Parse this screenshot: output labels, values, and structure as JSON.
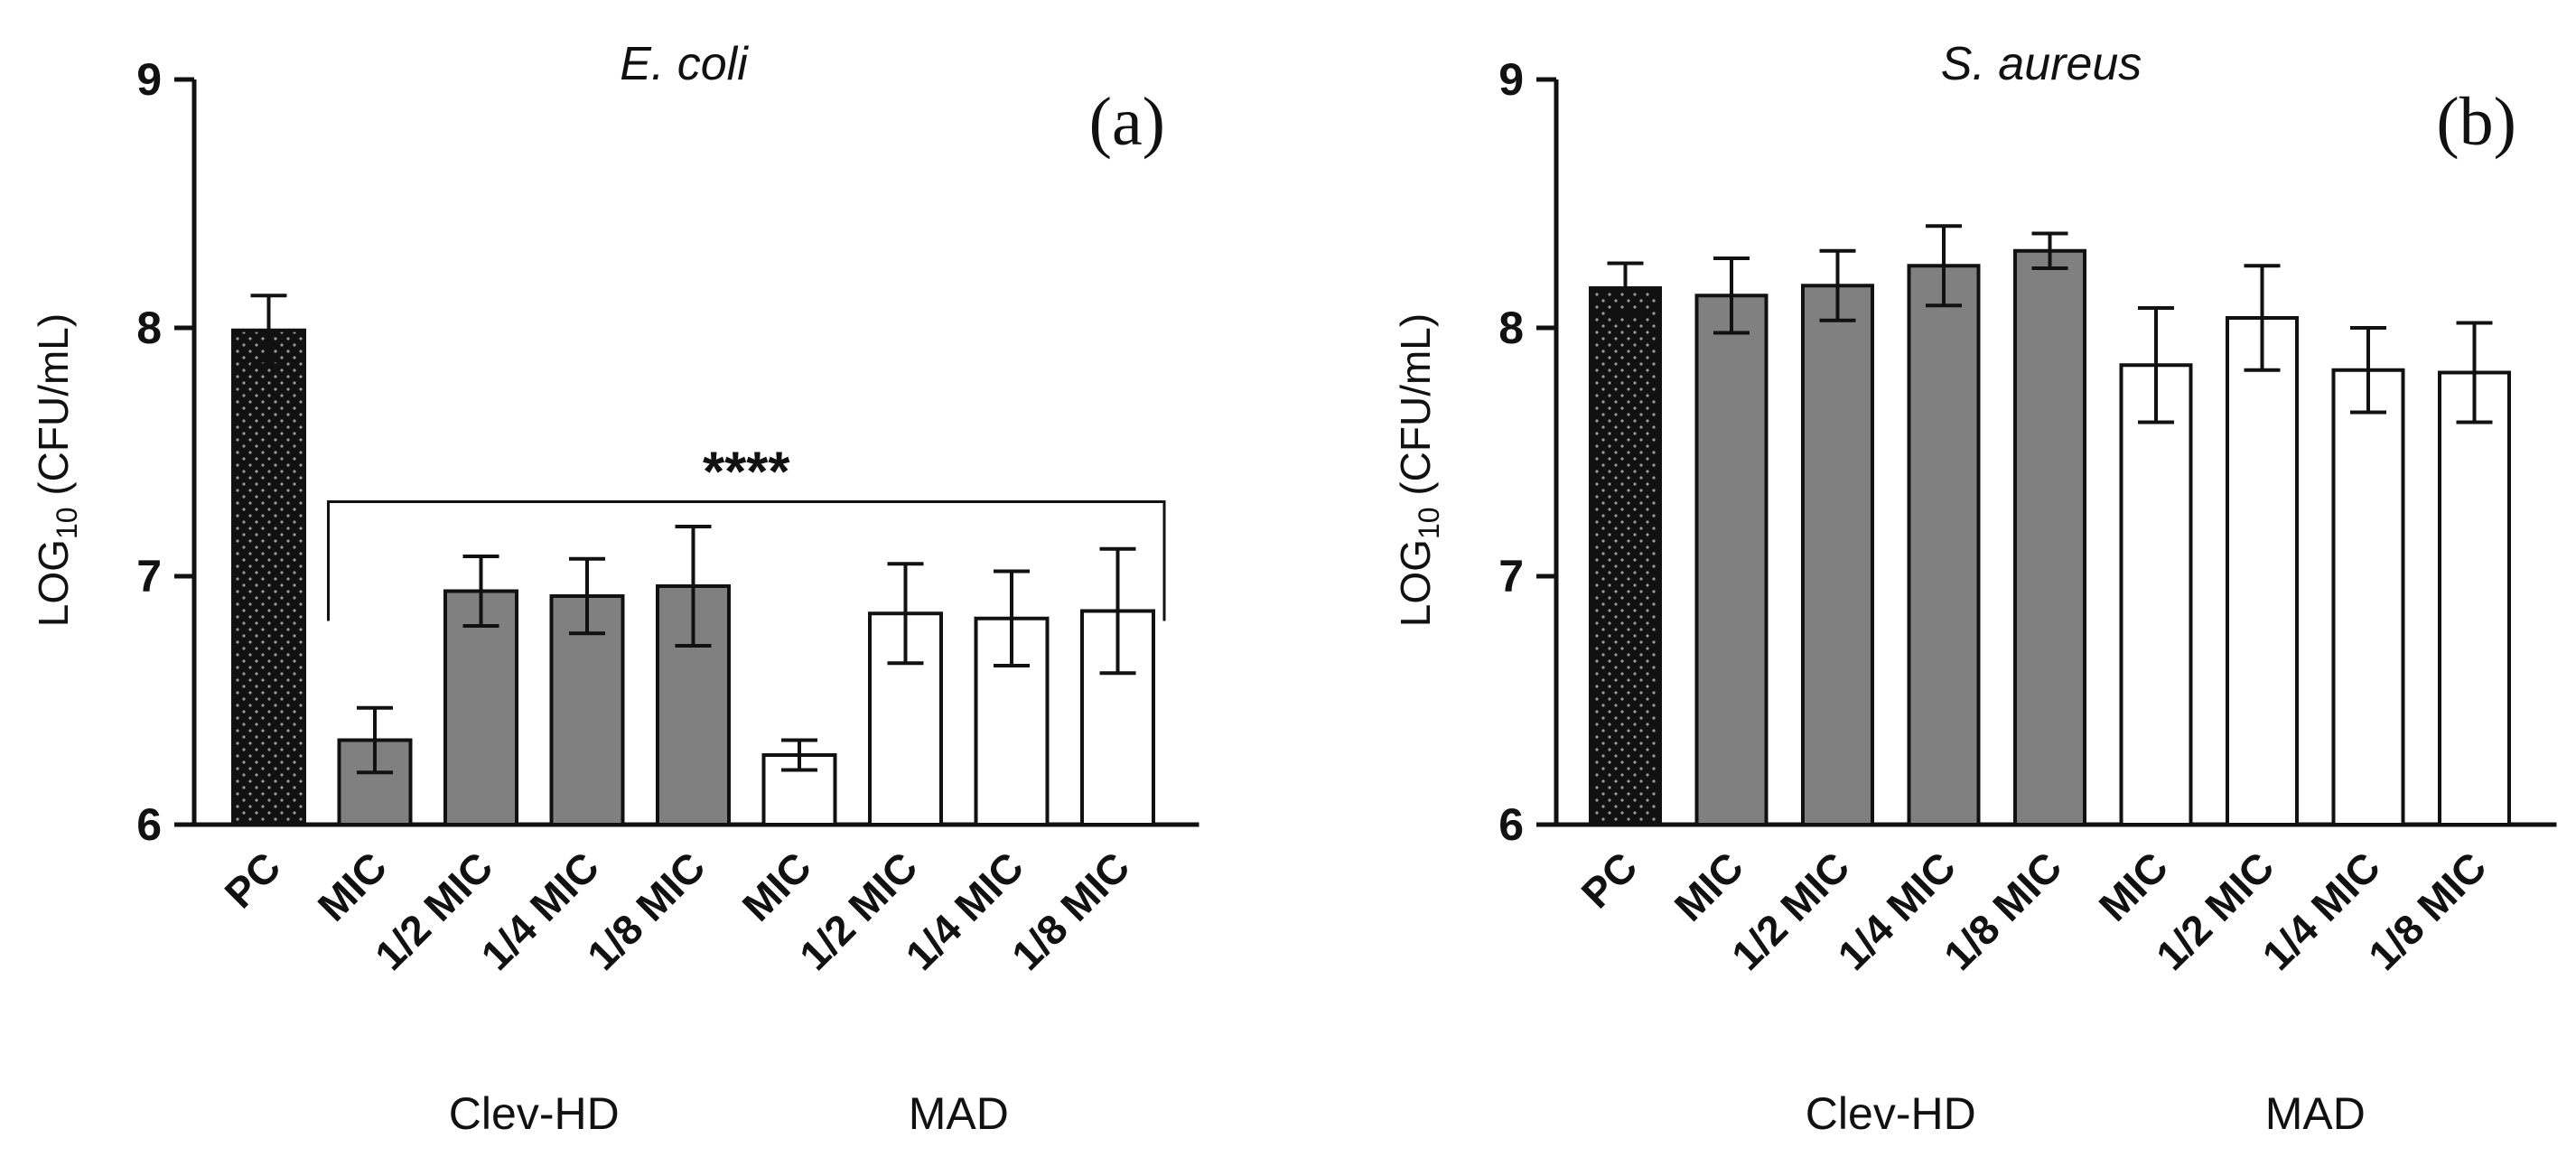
{
  "chart_data": [
    {
      "type": "bar",
      "panel": "(a)",
      "title": "E. coli",
      "ylabel_main": "LOG",
      "ylabel_sub": "10",
      "ylabel_unit": " (CFU/mL)",
      "ylim": [
        6,
        9
      ],
      "yticks": [
        "6",
        "7",
        "8",
        "9"
      ],
      "categories": [
        "PC",
        "MIC",
        "1/2 MIC",
        "1/4 MIC",
        "1/8 MIC",
        "MIC",
        "1/2 MIC",
        "1/4 MIC",
        "1/8 MIC"
      ],
      "values": [
        7.99,
        6.34,
        6.94,
        6.92,
        6.96,
        6.28,
        6.85,
        6.83,
        6.86
      ],
      "errors": [
        0.14,
        0.13,
        0.14,
        0.15,
        0.24,
        0.06,
        0.2,
        0.19,
        0.25
      ],
      "fills": [
        "dotted",
        "gray",
        "gray",
        "gray",
        "gray",
        "white",
        "white",
        "white",
        "white"
      ],
      "groups": [
        {
          "label": "Clev-HD",
          "start": 1,
          "end": 4
        },
        {
          "label": "MAD",
          "start": 5,
          "end": 8
        }
      ],
      "significance": {
        "label": "****",
        "from": 1,
        "to": 8
      },
      "grid": false
    },
    {
      "type": "bar",
      "panel": "(b)",
      "title": "S. aureus",
      "ylabel_main": "LOG",
      "ylabel_sub": "10",
      "ylabel_unit": " (CFU/mL)",
      "ylim": [
        6,
        9
      ],
      "yticks": [
        "6",
        "7",
        "8",
        "9"
      ],
      "categories": [
        "PC",
        "MIC",
        "1/2 MIC",
        "1/4 MIC",
        "1/8 MIC",
        "MIC",
        "1/2 MIC",
        "1/4 MIC",
        "1/8 MIC"
      ],
      "values": [
        8.16,
        8.13,
        8.17,
        8.25,
        8.31,
        7.85,
        8.04,
        7.83,
        7.82
      ],
      "errors": [
        0.1,
        0.15,
        0.14,
        0.16,
        0.07,
        0.23,
        0.21,
        0.17,
        0.2
      ],
      "fills": [
        "dotted",
        "gray",
        "gray",
        "gray",
        "gray",
        "white",
        "white",
        "white",
        "white"
      ],
      "groups": [
        {
          "label": "Clev-HD",
          "start": 1,
          "end": 4
        },
        {
          "label": "MAD",
          "start": 5,
          "end": 8
        }
      ],
      "significance": null,
      "grid": false
    }
  ],
  "colors": {
    "gray_bar": "#808080",
    "white_bar": "#ffffff",
    "dotted_bar": "#111111",
    "axis": "#111111"
  }
}
